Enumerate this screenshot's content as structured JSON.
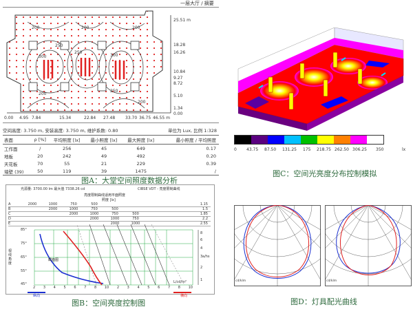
{
  "panel_a": {
    "header_right": "一层大厅 / 摘要",
    "y_ticks": [
      "25.51 m",
      "18.28",
      "16.26",
      "10.84",
      "9.27",
      "8.72",
      "5.10",
      "1.34",
      "0.00"
    ],
    "x_ticks": [
      "0.00",
      "4.95",
      "7.84",
      "15.34",
      "22.84",
      "27.48",
      "33.70",
      "36.75",
      "46.55 m"
    ],
    "contour_labels": [
      "200",
      "250",
      "300",
      "200",
      "250",
      "300",
      "200",
      "250",
      "200",
      "200"
    ],
    "info_left": "空间高度: 3.750 m, 安装高度: 3.750 m, 维护系数: 0.80",
    "info_right": "单位为 Lux, 比例 1:328",
    "table_headers": [
      "表面",
      "ρ [%]",
      "平均照度 [lx]",
      "最小照度 [lx]",
      "最大照度 [lx]",
      "最小照度 / 平均照度"
    ],
    "table_rows": [
      [
        "工作面",
        "/",
        "256",
        "45",
        "649",
        "0.17"
      ],
      [
        "地板",
        "20",
        "242",
        "49",
        "492",
        "0.20"
      ],
      [
        "天花板",
        "70",
        "55",
        "21",
        "229",
        "0.39"
      ],
      [
        "墙壁 (39)",
        "50",
        "119",
        "39",
        "1475",
        "/"
      ]
    ],
    "caption": "图A：大堂空间照度数据分析"
  },
  "panel_b": {
    "header": "光源量: 3700.00 lm   最大值 7338.26 cd",
    "header_right": "CIBSE VDT - 亮度限制曲线",
    "table_title1": "亮度限制曲线适用平面照度",
    "table_title2": "照度 [lx]",
    "table_rows": [
      [
        "A",
        "2000",
        "1000",
        "750",
        "500",
        "",
        "",
        "1.15"
      ],
      [
        "B",
        "",
        "2000",
        "1000",
        "750",
        "500",
        "",
        "1.5"
      ],
      [
        "C",
        "",
        "",
        "2000",
        "1000",
        "750",
        "500",
        "1.85"
      ],
      [
        "D",
        "",
        "",
        "",
        "2000",
        "1000",
        "750",
        "2.2"
      ],
      [
        "E",
        "",
        "",
        "",
        "",
        "2000",
        "1000",
        "2.55"
      ]
    ],
    "y_axis_label": "视线角度",
    "y_ticks": [
      "85°",
      "75°",
      "65°",
      "55°",
      "45°"
    ],
    "x_ticks": [
      "2",
      "3",
      "4",
      "5",
      "6",
      "7",
      "8",
      "10",
      "2",
      "3",
      "4",
      "5",
      "6",
      "7",
      "8",
      "10"
    ],
    "x_unit": "L/cd/m²",
    "curve_label": "截面图",
    "right_axis_label": "a/hs",
    "right_ticks": [
      "8",
      "6",
      "4",
      "3",
      "2",
      "1"
    ],
    "legend_left": "纵向",
    "legend_right": "横向",
    "colors": {
      "red": "#e02020",
      "blue": "#1a2fd0"
    },
    "caption": "图B：空间亮度控制图"
  },
  "panel_c": {
    "scale_values": [
      "0",
      "43.75",
      "87.50",
      "131.25",
      "175",
      "218.75",
      "262.50",
      "306.25",
      "350"
    ],
    "scale_unit": "lx",
    "scale_colors": [
      "#000000",
      "#5a0080",
      "#0000ff",
      "#00c0ff",
      "#00c000",
      "#ffff00",
      "#ff8000",
      "#ff00ff",
      "#ffffff"
    ],
    "caption": "图C：空间光亮度分布控制模拟"
  },
  "panel_d": {
    "chart_unit_left": "cd/klm",
    "chart_unit_right": "cd/klm",
    "caption": "图D：灯具配光曲线"
  }
}
